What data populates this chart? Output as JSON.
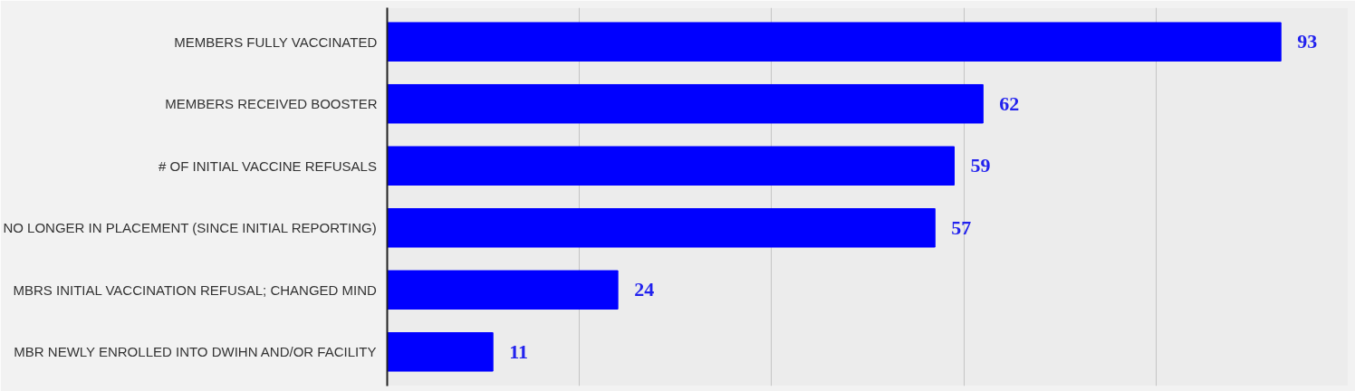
{
  "chart_data": {
    "type": "bar",
    "orientation": "horizontal",
    "categories": [
      "MEMBERS FULLY VACCINATED",
      "MEMBERS RECEIVED BOOSTER",
      "# OF INITIAL VACCINE REFUSALS",
      "NO LONGER IN PLACEMENT (SINCE INITIAL REPORTING)",
      "MBRS INITIAL VACCINATION REFUSAL; CHANGED MIND",
      "MBR NEWLY ENROLLED INTO DWIHN AND/OR FACILITY"
    ],
    "values": [
      93,
      62,
      59,
      57,
      24,
      11
    ],
    "color": "#0000ff",
    "data_labels": true,
    "xlim": [
      0,
      100
    ],
    "xticks": [
      {
        "value": 0,
        "label": null
      },
      {
        "value": 20,
        "label": null
      },
      {
        "value": 40,
        "label": null
      },
      {
        "value": 60,
        "label": null
      },
      {
        "value": 80,
        "label": null
      },
      {
        "value": 100,
        "label": null
      }
    ],
    "grid": "x",
    "tick_labels": "y"
  }
}
